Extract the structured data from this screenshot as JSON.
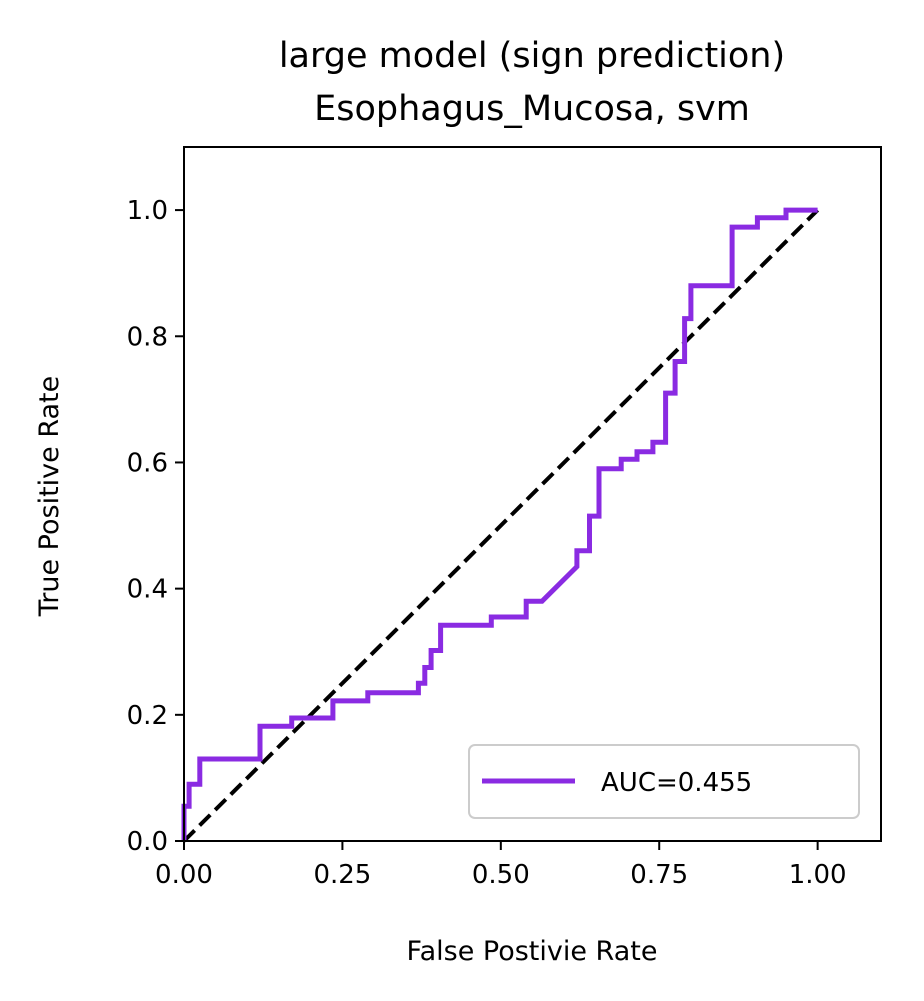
{
  "chart_data": {
    "type": "line",
    "title": "large model (sign prediction)",
    "subtitle": "Esophagus_Mucosa, svm",
    "xlabel": "False Postivie Rate",
    "ylabel": "True Positive Rate",
    "xlim": [
      0,
      1.1
    ],
    "ylim": [
      0,
      1.1
    ],
    "xticks": [
      0.0,
      0.25,
      0.5,
      0.75,
      1.0
    ],
    "xtick_labels": [
      "0.00",
      "0.25",
      "0.50",
      "0.75",
      "1.00"
    ],
    "yticks": [
      0.0,
      0.2,
      0.4,
      0.6,
      0.8,
      1.0
    ],
    "ytick_labels": [
      "0.0",
      "0.2",
      "0.4",
      "0.6",
      "0.8",
      "1.0"
    ],
    "grid": false,
    "legend_position": "lower-right",
    "series": [
      {
        "name": "AUC=0.455",
        "color": "#8a2be2",
        "style": "solid",
        "points": [
          [
            0.0,
            0.0
          ],
          [
            0.0,
            0.055
          ],
          [
            0.008,
            0.055
          ],
          [
            0.008,
            0.09
          ],
          [
            0.025,
            0.09
          ],
          [
            0.025,
            0.13
          ],
          [
            0.12,
            0.13
          ],
          [
            0.12,
            0.182
          ],
          [
            0.17,
            0.182
          ],
          [
            0.17,
            0.195
          ],
          [
            0.235,
            0.195
          ],
          [
            0.235,
            0.222
          ],
          [
            0.29,
            0.222
          ],
          [
            0.29,
            0.235
          ],
          [
            0.37,
            0.235
          ],
          [
            0.37,
            0.25
          ],
          [
            0.38,
            0.25
          ],
          [
            0.38,
            0.275
          ],
          [
            0.39,
            0.275
          ],
          [
            0.39,
            0.302
          ],
          [
            0.405,
            0.302
          ],
          [
            0.405,
            0.342
          ],
          [
            0.485,
            0.342
          ],
          [
            0.485,
            0.355
          ],
          [
            0.54,
            0.355
          ],
          [
            0.54,
            0.38
          ],
          [
            0.565,
            0.38
          ],
          [
            0.62,
            0.435
          ],
          [
            0.62,
            0.46
          ],
          [
            0.64,
            0.46
          ],
          [
            0.64,
            0.515
          ],
          [
            0.655,
            0.515
          ],
          [
            0.655,
            0.59
          ],
          [
            0.69,
            0.59
          ],
          [
            0.69,
            0.605
          ],
          [
            0.715,
            0.605
          ],
          [
            0.715,
            0.617
          ],
          [
            0.74,
            0.617
          ],
          [
            0.74,
            0.632
          ],
          [
            0.76,
            0.632
          ],
          [
            0.76,
            0.71
          ],
          [
            0.775,
            0.71
          ],
          [
            0.775,
            0.76
          ],
          [
            0.79,
            0.76
          ],
          [
            0.79,
            0.828
          ],
          [
            0.8,
            0.828
          ],
          [
            0.8,
            0.88
          ],
          [
            0.865,
            0.88
          ],
          [
            0.865,
            0.973
          ],
          [
            0.905,
            0.973
          ],
          [
            0.905,
            0.988
          ],
          [
            0.95,
            0.988
          ],
          [
            0.95,
            1.0
          ],
          [
            1.0,
            1.0
          ]
        ]
      },
      {
        "name": "",
        "color": "#000000",
        "style": "dashed",
        "points": [
          [
            0.0,
            0.0
          ],
          [
            1.0,
            1.0
          ]
        ]
      }
    ]
  }
}
